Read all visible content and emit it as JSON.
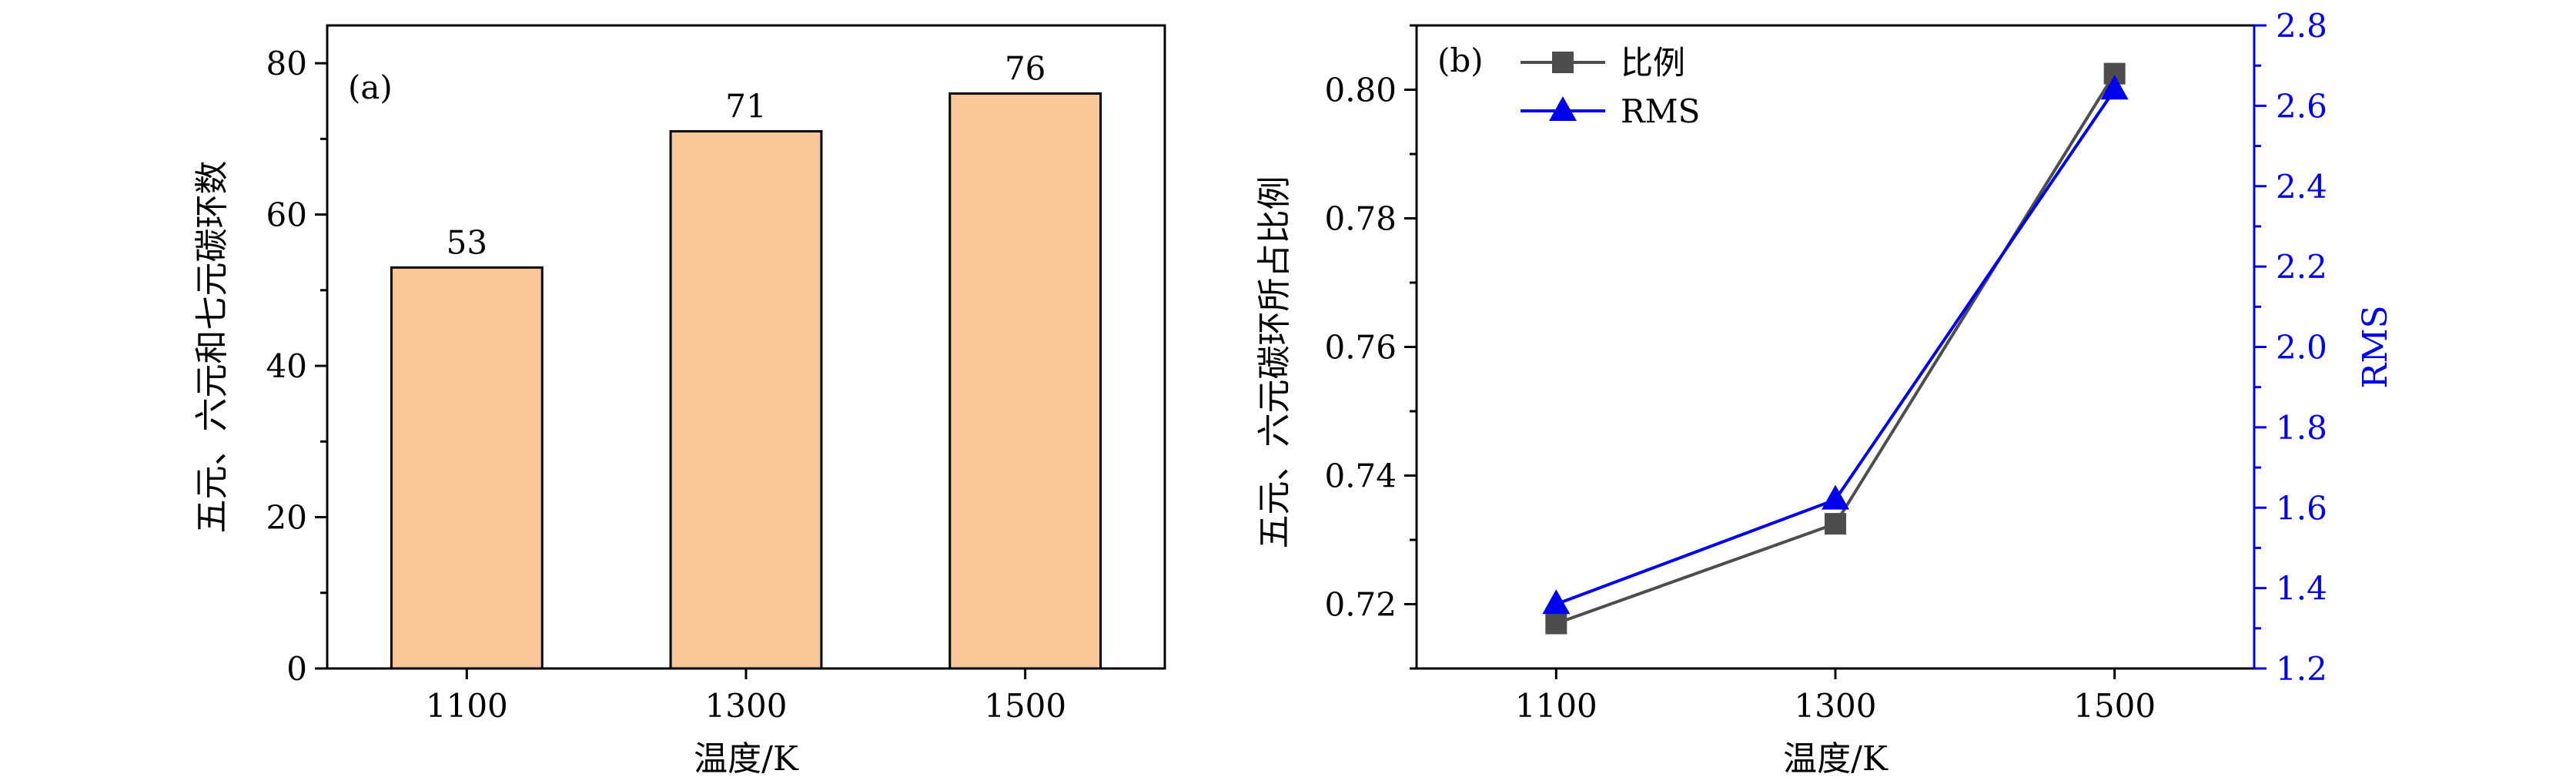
{
  "chart_data": [
    {
      "type": "bar",
      "panel_label": "(a)",
      "categories": [
        "1100",
        "1300",
        "1500"
      ],
      "values": [
        53,
        71,
        76
      ],
      "data_labels": [
        "53",
        "71",
        "76"
      ],
      "xlabel": "温度/K",
      "ylabel": "五元、六元和七元碳环数",
      "ylim": [
        0,
        85
      ],
      "yticks": [
        0,
        20,
        40,
        60,
        80
      ],
      "bar_color": "#F9C697",
      "grid": false
    },
    {
      "type": "line",
      "panel_label": "(b)",
      "x": [
        "1100",
        "1300",
        "1500"
      ],
      "xlabel": "温度/K",
      "ylabel": "五元、六元碳环所占比例",
      "ylim": [
        0.71,
        0.81
      ],
      "yticks": [
        0.72,
        0.74,
        0.76,
        0.78,
        0.8
      ],
      "ytick_labels": [
        "0.72",
        "0.74",
        "0.76",
        "0.78",
        "0.80"
      ],
      "y2label": "RMS",
      "y2lim": [
        1.2,
        2.8
      ],
      "y2ticks": [
        1.2,
        1.4,
        1.6,
        1.8,
        2.0,
        2.2,
        2.4,
        2.6,
        2.8
      ],
      "y2tick_labels": [
        "1.2",
        "1.4",
        "1.6",
        "1.8",
        "2.0",
        "2.2",
        "2.4",
        "2.6",
        "2.8"
      ],
      "legend_position": "top-left",
      "grid": false,
      "series": [
        {
          "name": "比例",
          "axis": "left",
          "values": [
            0.717,
            0.7325,
            0.8025
          ],
          "color": "#4D4D4D",
          "marker": "square"
        },
        {
          "name": "RMS",
          "axis": "right",
          "values": [
            1.36,
            1.62,
            2.64
          ],
          "color": "#0000F0",
          "marker": "triangle"
        }
      ]
    }
  ]
}
